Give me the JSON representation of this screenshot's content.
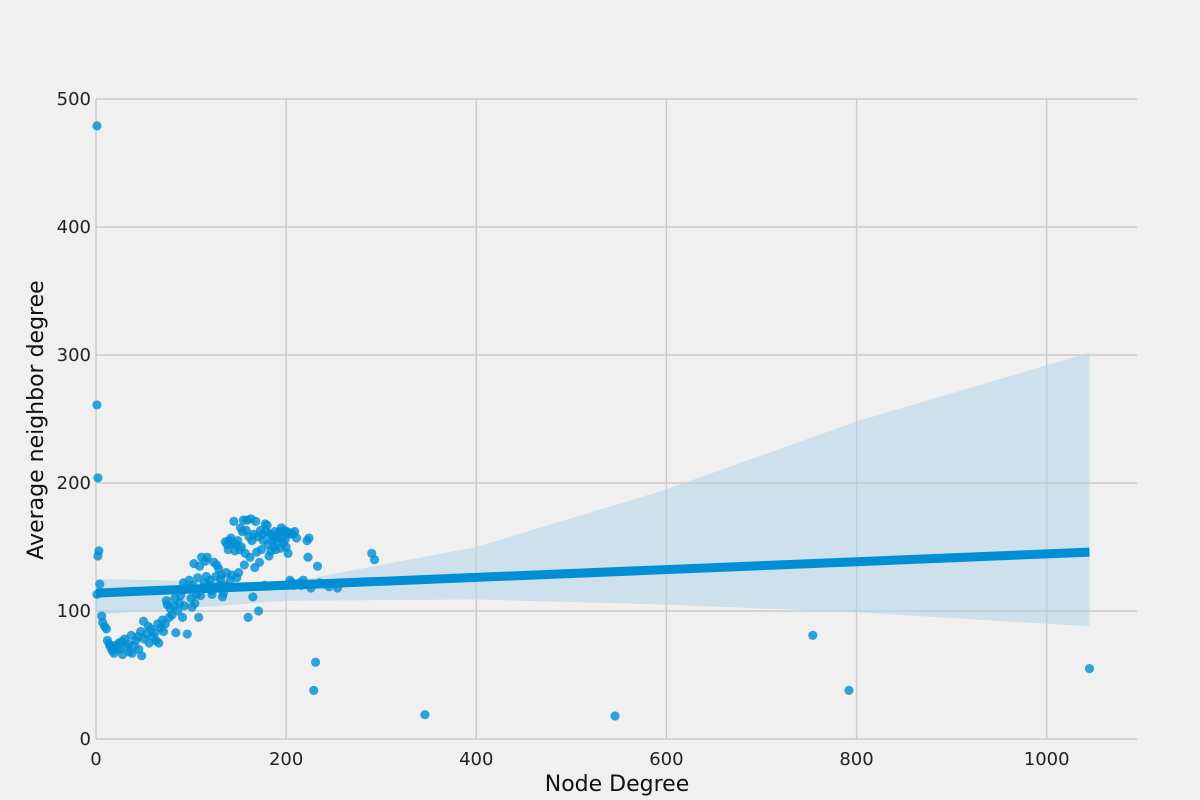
{
  "chart_data": {
    "type": "scatter",
    "title": "",
    "xlabel": "Node Degree",
    "ylabel": "Average neighbor degree",
    "xlim": [
      0,
      1095
    ],
    "ylim": [
      0,
      500
    ],
    "x_ticks": [
      0,
      200,
      400,
      600,
      800,
      1000
    ],
    "y_ticks": [
      0,
      100,
      200,
      300,
      400,
      500
    ],
    "grid": true,
    "legend": "none",
    "colors": {
      "background": "#f0f0f0",
      "grid": "#cbcbcb",
      "points": "#008fd5",
      "fit_line": "#008fd5",
      "confidence_band": "#b3d4e8"
    },
    "series": [
      {
        "points": [
          [
            1,
            479
          ],
          [
            1,
            261
          ],
          [
            2,
            204
          ],
          [
            3,
            147
          ],
          [
            2,
            143
          ],
          [
            4,
            121
          ],
          [
            1,
            113
          ],
          [
            6,
            96
          ],
          [
            7,
            91
          ],
          [
            9,
            88
          ],
          [
            11,
            86
          ],
          [
            12,
            77
          ],
          [
            14,
            74
          ],
          [
            15,
            72
          ],
          [
            17,
            69
          ],
          [
            19,
            67
          ],
          [
            20,
            73
          ],
          [
            22,
            71
          ],
          [
            24,
            75
          ],
          [
            25,
            70
          ],
          [
            27,
            76
          ],
          [
            28,
            66
          ],
          [
            30,
            78
          ],
          [
            32,
            72
          ],
          [
            34,
            74
          ],
          [
            35,
            68
          ],
          [
            37,
            81
          ],
          [
            38,
            67
          ],
          [
            40,
            73
          ],
          [
            42,
            77
          ],
          [
            44,
            80
          ],
          [
            45,
            70
          ],
          [
            47,
            84
          ],
          [
            48,
            65
          ],
          [
            50,
            92
          ],
          [
            51,
            78
          ],
          [
            53,
            82
          ],
          [
            55,
            88
          ],
          [
            56,
            75
          ],
          [
            58,
            86
          ],
          [
            60,
            80
          ],
          [
            62,
            83
          ],
          [
            63,
            77
          ],
          [
            65,
            90
          ],
          [
            66,
            75
          ],
          [
            68,
            87
          ],
          [
            70,
            93
          ],
          [
            71,
            84
          ],
          [
            73,
            90
          ],
          [
            74,
            108
          ],
          [
            75,
            105
          ],
          [
            77,
            95
          ],
          [
            78,
            102
          ],
          [
            80,
            97
          ],
          [
            82,
            104
          ],
          [
            83,
            110
          ],
          [
            84,
            83
          ],
          [
            86,
            100
          ],
          [
            88,
            106
          ],
          [
            89,
            112
          ],
          [
            91,
            95
          ],
          [
            92,
            122
          ],
          [
            93,
            104
          ],
          [
            95,
            118
          ],
          [
            96,
            82
          ],
          [
            98,
            124
          ],
          [
            100,
            110
          ],
          [
            101,
            103
          ],
          [
            102,
            120
          ],
          [
            103,
            137
          ],
          [
            104,
            106
          ],
          [
            106,
            113
          ],
          [
            107,
            126
          ],
          [
            108,
            95
          ],
          [
            109,
            135
          ],
          [
            110,
            112
          ],
          [
            111,
            142
          ],
          [
            112,
            118
          ],
          [
            114,
            122
          ],
          [
            115,
            139
          ],
          [
            116,
            127
          ],
          [
            117,
            142
          ],
          [
            119,
            120
          ],
          [
            120,
            124
          ],
          [
            121,
            116
          ],
          [
            122,
            113
          ],
          [
            124,
            138
          ],
          [
            125,
            119
          ],
          [
            126,
            127
          ],
          [
            127,
            136
          ],
          [
            129,
            133
          ],
          [
            130,
            120
          ],
          [
            131,
            125
          ],
          [
            132,
            128
          ],
          [
            133,
            111
          ],
          [
            134,
            114
          ],
          [
            135,
            120
          ],
          [
            136,
            154
          ],
          [
            137,
            130
          ],
          [
            138,
            152
          ],
          [
            139,
            148
          ],
          [
            140,
            155
          ],
          [
            141,
            124
          ],
          [
            142,
            157
          ],
          [
            143,
            128
          ],
          [
            144,
            153
          ],
          [
            145,
            170
          ],
          [
            146,
            147
          ],
          [
            147,
            152
          ],
          [
            148,
            126
          ],
          [
            149,
            155
          ],
          [
            150,
            130
          ],
          [
            151,
            148
          ],
          [
            152,
            165
          ],
          [
            153,
            150
          ],
          [
            154,
            162
          ],
          [
            155,
            171
          ],
          [
            156,
            136
          ],
          [
            157,
            145
          ],
          [
            158,
            163
          ],
          [
            159,
            171
          ],
          [
            160,
            95
          ],
          [
            161,
            158
          ],
          [
            162,
            142
          ],
          [
            163,
            172
          ],
          [
            164,
            155
          ],
          [
            165,
            111
          ],
          [
            166,
            160
          ],
          [
            167,
            134
          ],
          [
            168,
            170
          ],
          [
            169,
            146
          ],
          [
            170,
            158
          ],
          [
            171,
            100
          ],
          [
            172,
            138
          ],
          [
            173,
            163
          ],
          [
            174,
            148
          ],
          [
            175,
            160
          ],
          [
            176,
            155
          ],
          [
            177,
            120
          ],
          [
            178,
            168
          ],
          [
            179,
            162
          ],
          [
            180,
            167
          ],
          [
            181,
            152
          ],
          [
            182,
            143
          ],
          [
            183,
            160
          ],
          [
            184,
            147
          ],
          [
            185,
            155
          ],
          [
            186,
            158
          ],
          [
            187,
            150
          ],
          [
            188,
            162
          ],
          [
            189,
            148
          ],
          [
            190,
            157
          ],
          [
            191,
            154
          ],
          [
            192,
            160
          ],
          [
            193,
            162
          ],
          [
            194,
            149
          ],
          [
            195,
            165
          ],
          [
            196,
            158
          ],
          [
            197,
            153
          ],
          [
            198,
            163
          ],
          [
            199,
            156
          ],
          [
            200,
            150
          ],
          [
            201,
            162
          ],
          [
            202,
            145
          ],
          [
            203,
            160
          ],
          [
            204,
            124
          ],
          [
            205,
            161
          ],
          [
            206,
            122
          ],
          [
            207,
            160
          ],
          [
            208,
            120
          ],
          [
            209,
            162
          ],
          [
            210,
            121
          ],
          [
            211,
            157
          ],
          [
            214,
            122
          ],
          [
            216,
            120
          ],
          [
            218,
            124
          ],
          [
            220,
            121
          ],
          [
            222,
            155
          ],
          [
            223,
            142
          ],
          [
            224,
            157
          ],
          [
            226,
            118
          ],
          [
            229,
            38
          ],
          [
            231,
            60
          ],
          [
            233,
            135
          ],
          [
            235,
            122
          ],
          [
            240,
            121
          ],
          [
            245,
            119
          ],
          [
            254,
            118
          ],
          [
            290,
            145
          ],
          [
            293,
            140
          ],
          [
            346,
            19
          ],
          [
            546,
            18
          ],
          [
            754,
            81
          ],
          [
            792,
            38
          ],
          [
            1045,
            55
          ]
        ]
      }
    ],
    "regression": {
      "x_range": [
        0,
        1045
      ],
      "line": [
        [
          0,
          114
        ],
        [
          1045,
          146
        ]
      ],
      "ci_lower": [
        [
          0,
          97
        ],
        [
          200,
          108
        ],
        [
          400,
          109
        ],
        [
          600,
          105
        ],
        [
          800,
          99
        ],
        [
          1045,
          88
        ]
      ],
      "ci_upper": [
        [
          0,
          125
        ],
        [
          200,
          122
        ],
        [
          400,
          150
        ],
        [
          600,
          195
        ],
        [
          800,
          248
        ],
        [
          1045,
          302
        ]
      ]
    }
  }
}
